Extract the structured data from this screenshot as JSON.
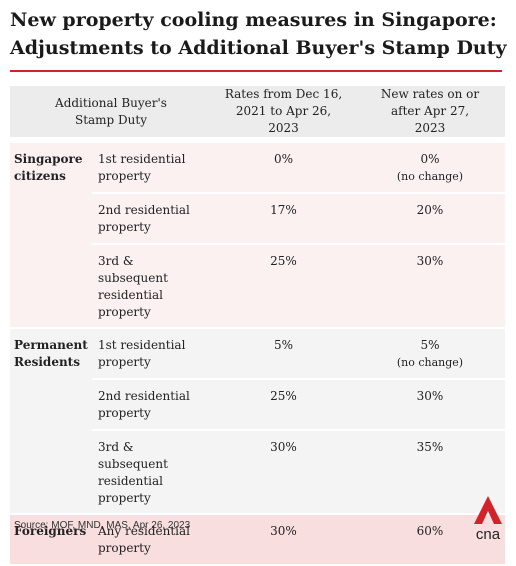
{
  "header": {
    "title": [
      "New property cooling measures in Singapore:",
      "Adjustments to Additional Buyer's Stamp Duty"
    ]
  },
  "table": {
    "columns": [
      "Additional Buyer's Stamp Duty",
      "Rates from Dec 16, 2021 to Apr 26, 2023",
      "New rates on or after Apr 27, 2023"
    ],
    "groups": [
      {
        "name": "Singapore citizens",
        "rows": [
          {
            "property": "1st residential property",
            "old": "0%",
            "new": "0%",
            "note": "(no change)"
          },
          {
            "property": "2nd residential property",
            "old": "17%",
            "new": "20%"
          },
          {
            "property": "3rd & subsequent residential property",
            "old": "25%",
            "new": "30%"
          }
        ]
      },
      {
        "name": "Permanent Residents",
        "rows": [
          {
            "property": "1st residential property",
            "old": "5%",
            "new": "5%",
            "note": "(no change)"
          },
          {
            "property": "2nd residential property",
            "old": "25%",
            "new": "30%"
          },
          {
            "property": "3rd & subsequent residential property",
            "old": "30%",
            "new": "35%"
          }
        ]
      },
      {
        "name": "Foreigners",
        "rows": [
          {
            "property": "Any residential property",
            "old": "30%",
            "new": "60%"
          }
        ]
      }
    ]
  },
  "footer": {
    "source": "Source: MOF, MND, MAS, Apr 26, 2023",
    "logo": "cna"
  }
}
